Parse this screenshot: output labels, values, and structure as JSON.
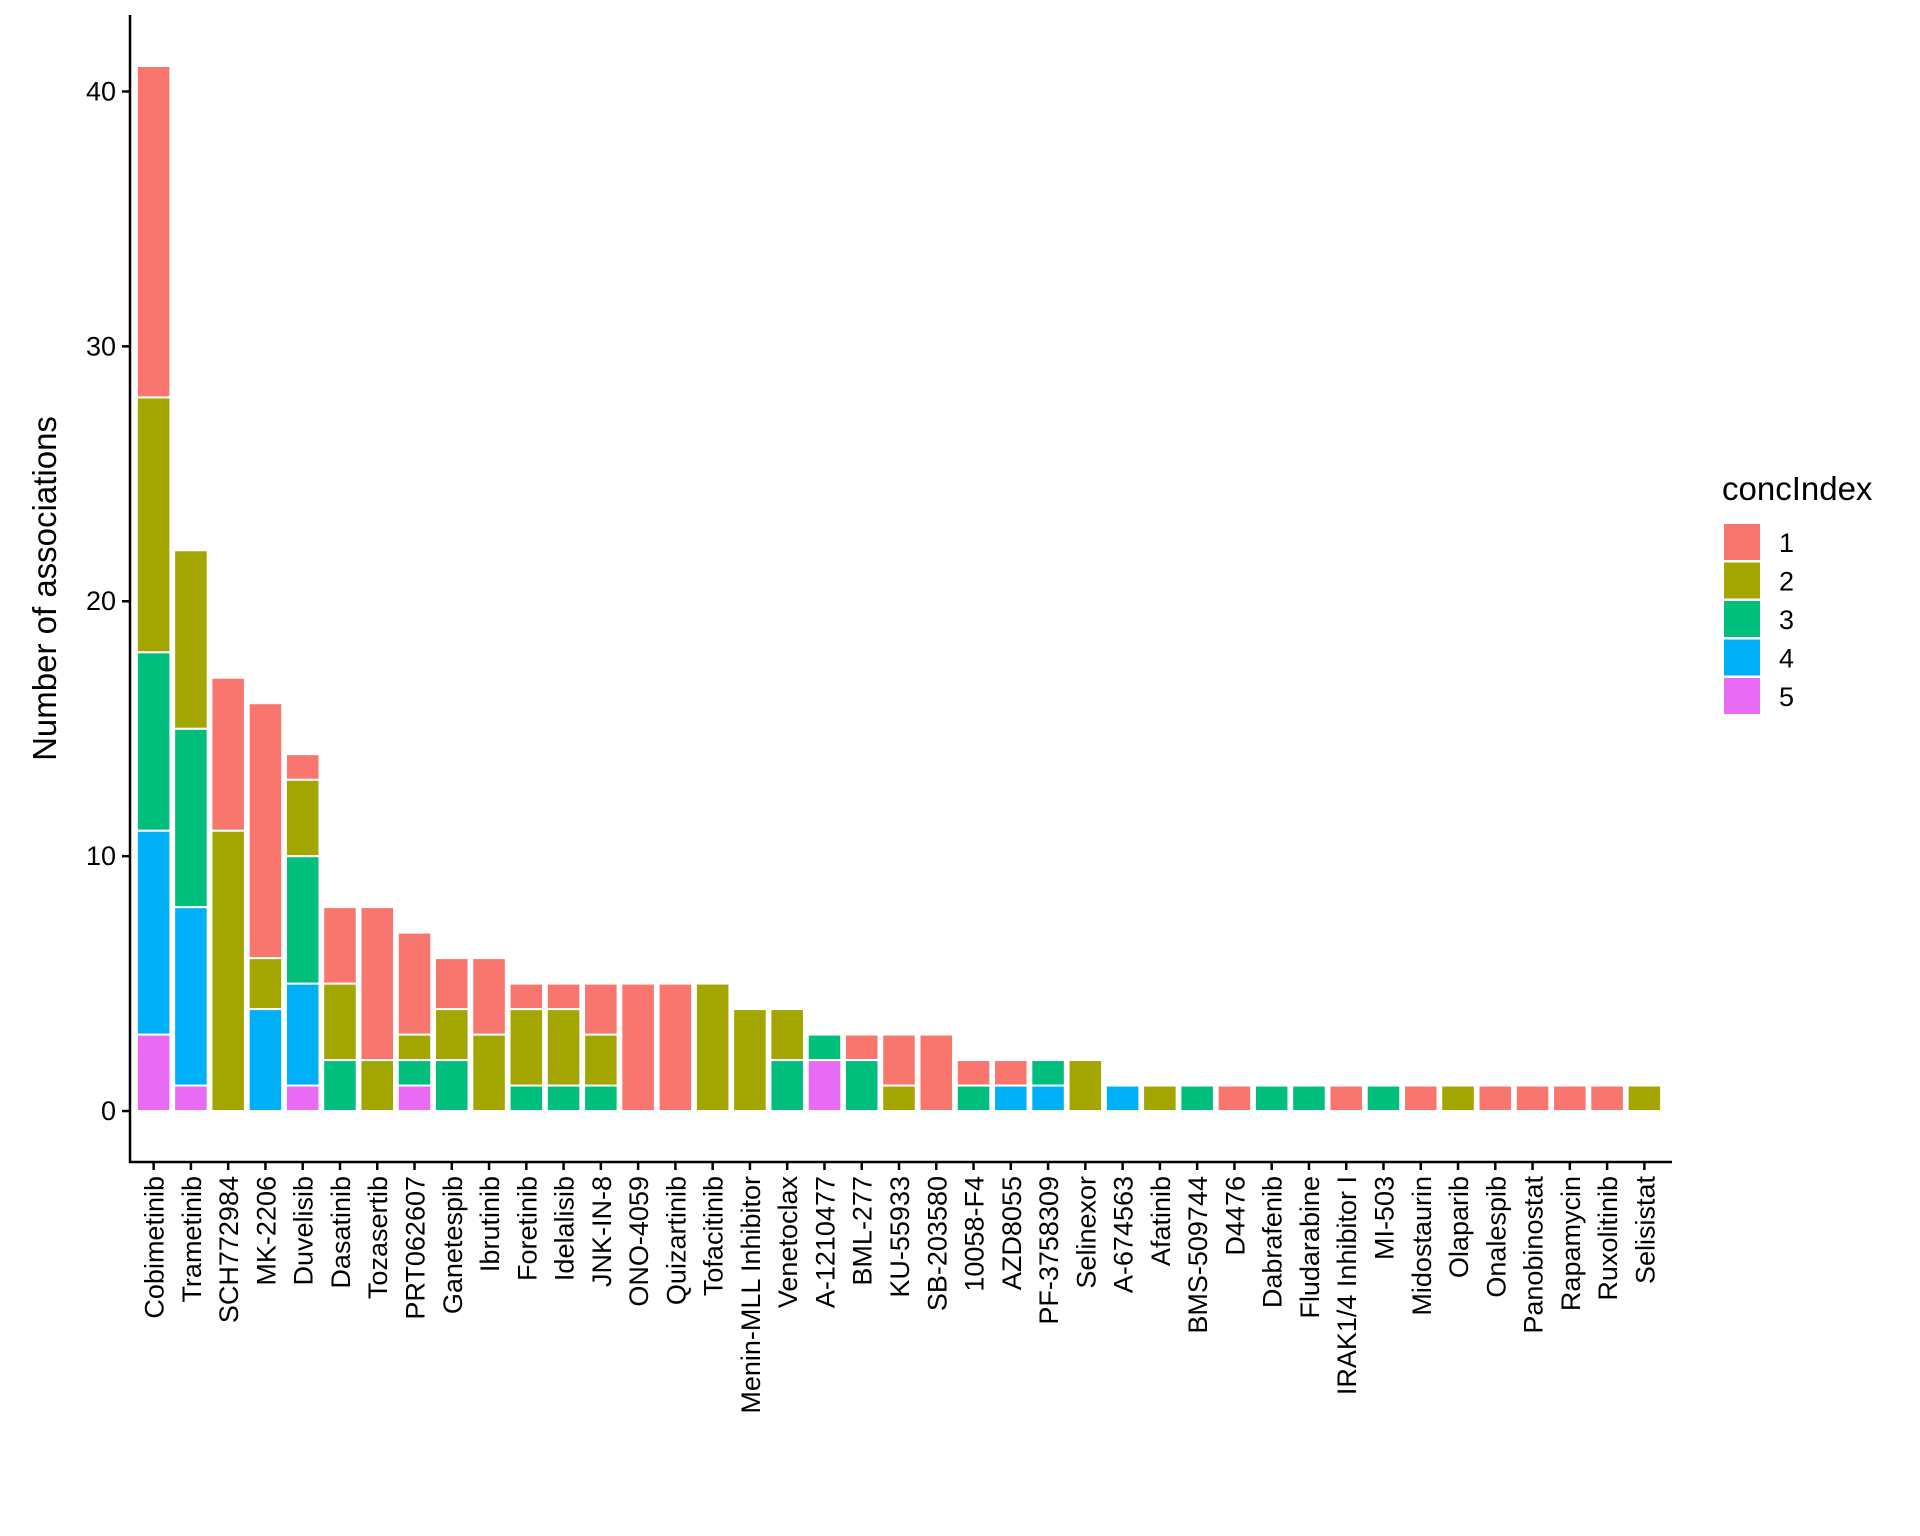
{
  "chart_data": {
    "type": "bar",
    "stacked": true,
    "title": "",
    "xlabel": "",
    "ylabel": "Number of associations",
    "ylim": [
      -2,
      43
    ],
    "yticks": [
      0,
      10,
      20,
      30,
      40
    ],
    "grid": false,
    "legend": {
      "title": "concIndex",
      "placement": "right",
      "entries": [
        "1",
        "2",
        "3",
        "4",
        "5"
      ]
    },
    "colors": {
      "1": "#F8766D",
      "2": "#A3A500",
      "3": "#00BF7D",
      "4": "#00B0F6",
      "5": "#E76BF3"
    },
    "categories": [
      "Cobimetinib",
      "Trametinib",
      "SCH772984",
      "MK-2206",
      "Duvelisib",
      "Dasatinib",
      "Tozasertib",
      "PRT062607",
      "Ganetespib",
      "Ibrutinib",
      "Foretinib",
      "Idelalisib",
      "JNK-IN-8",
      "ONO-4059",
      "Quizartinib",
      "Tofacitinib",
      "Menin-MLL Inhibitor",
      "Venetoclax",
      "A-1210477",
      "BML-277",
      "KU-55933",
      "SB-203580",
      "10058-F4",
      "AZD8055",
      "PF-3758309",
      "Selinexor",
      "A-674563",
      "Afatinib",
      "BMS-509744",
      "D4476",
      "Dabrafenib",
      "Fludarabine",
      "IRAK1/4 Inhibitor I",
      "MI-503",
      "Midostaurin",
      "Olaparib",
      "Onalespib",
      "Panobinostat",
      "Rapamycin",
      "Ruxolitinib",
      "Selisistat"
    ],
    "series": [
      {
        "name": "5",
        "values": [
          3,
          1,
          0,
          0,
          1,
          0,
          0,
          1,
          0,
          0,
          0,
          0,
          0,
          0,
          0,
          0,
          0,
          0,
          2,
          0,
          0,
          0,
          0,
          0,
          0,
          0,
          0,
          0,
          0,
          0,
          0,
          0,
          0,
          0,
          0,
          0,
          0,
          0,
          0,
          0,
          0
        ]
      },
      {
        "name": "4",
        "values": [
          8,
          7,
          0,
          4,
          4,
          0,
          0,
          0,
          0,
          0,
          0,
          0,
          0,
          0,
          0,
          0,
          0,
          0,
          0,
          0,
          0,
          0,
          0,
          1,
          1,
          0,
          1,
          0,
          0,
          0,
          0,
          0,
          0,
          0,
          0,
          0,
          0,
          0,
          0,
          0,
          0
        ]
      },
      {
        "name": "3",
        "values": [
          7,
          7,
          0,
          0,
          5,
          2,
          0,
          1,
          2,
          0,
          1,
          1,
          1,
          0,
          0,
          0,
          0,
          2,
          1,
          2,
          0,
          0,
          1,
          0,
          1,
          0,
          0,
          0,
          1,
          0,
          1,
          1,
          0,
          1,
          0,
          0,
          0,
          0,
          0,
          0,
          0
        ]
      },
      {
        "name": "2",
        "values": [
          10,
          7,
          11,
          2,
          3,
          3,
          2,
          1,
          2,
          3,
          3,
          3,
          2,
          0,
          0,
          5,
          4,
          2,
          0,
          0,
          1,
          0,
          0,
          0,
          0,
          2,
          0,
          1,
          0,
          0,
          0,
          0,
          0,
          0,
          0,
          1,
          0,
          0,
          0,
          0,
          1
        ]
      },
      {
        "name": "1",
        "values": [
          13,
          0,
          6,
          10,
          1,
          3,
          6,
          4,
          2,
          3,
          1,
          1,
          2,
          5,
          5,
          0,
          0,
          0,
          0,
          1,
          2,
          3,
          1,
          1,
          0,
          0,
          0,
          0,
          0,
          1,
          0,
          0,
          1,
          0,
          1,
          0,
          1,
          1,
          1,
          1,
          0
        ]
      }
    ]
  }
}
